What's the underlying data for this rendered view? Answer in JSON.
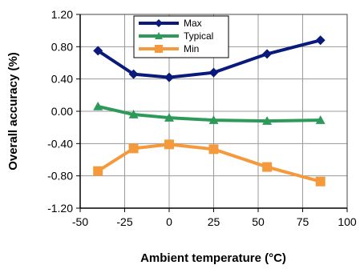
{
  "chart_data": {
    "type": "line",
    "xlabel": "Ambient temperature (°C)",
    "ylabel": "Overall accuracy  (%)",
    "xlim": [
      -50,
      100
    ],
    "ylim": [
      -1.2,
      1.2
    ],
    "xticks": [
      -50,
      -25,
      0,
      25,
      50,
      75,
      100
    ],
    "yticks": [
      1.2,
      0.8,
      0.4,
      0.0,
      -0.4,
      -0.8,
      -1.2
    ],
    "xtick_labels": [
      "-50",
      "-25",
      "0",
      "25",
      "50",
      "75",
      "100"
    ],
    "ytick_labels": [
      "1.20",
      "0.80",
      "0.40",
      "0.00",
      "-0.40",
      "-0.80",
      "-1.20"
    ],
    "grid": true,
    "legend_position": "top-center",
    "x": [
      -40,
      -20,
      0,
      25,
      55,
      85
    ],
    "series": [
      {
        "name": "Max",
        "marker": "diamond",
        "color": "#0a1a7a",
        "values": [
          0.75,
          0.46,
          0.42,
          0.48,
          0.71,
          0.88
        ]
      },
      {
        "name": "Typical",
        "marker": "triangle",
        "color": "#2e9a5a",
        "values": [
          0.06,
          -0.04,
          -0.08,
          -0.11,
          -0.12,
          -0.11
        ]
      },
      {
        "name": "Min",
        "marker": "square",
        "color": "#f59a3c",
        "values": [
          -0.74,
          -0.46,
          -0.41,
          -0.47,
          -0.69,
          -0.87
        ]
      }
    ]
  }
}
